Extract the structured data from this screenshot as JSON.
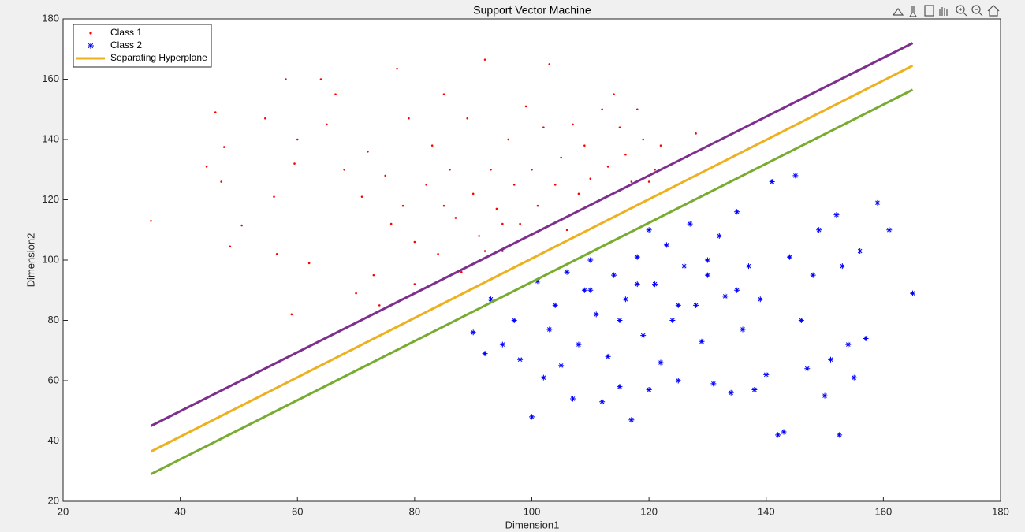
{
  "chart_data": {
    "type": "scatter",
    "title": "Support Vector Machine",
    "x_label": "Dimension1",
    "y_label": "Dimension2",
    "xlim": [
      20,
      180
    ],
    "ylim": [
      20,
      180
    ],
    "xticks": [
      20,
      40,
      60,
      80,
      100,
      120,
      140,
      160,
      180
    ],
    "yticks": [
      20,
      40,
      60,
      80,
      100,
      120,
      140,
      160,
      180
    ],
    "legend": "northwest",
    "series": [
      {
        "name": "Class 1",
        "type": "scatter",
        "marker": "dot",
        "color": "#ff0000",
        "x": [
          35,
          44.5,
          46,
          47,
          47.5,
          48.5,
          50.5,
          54.5,
          56,
          56.5,
          58,
          59,
          59.5,
          60,
          62,
          64,
          65,
          66.5,
          68,
          70,
          71,
          72,
          74,
          75,
          76,
          77,
          78,
          79,
          80,
          82,
          83,
          84,
          85,
          86,
          87,
          88,
          89,
          90,
          91,
          92,
          93,
          94,
          95,
          96,
          97,
          98,
          99,
          100,
          101,
          102,
          103,
          104,
          105,
          106,
          107,
          108,
          109,
          110,
          112,
          113,
          114,
          115,
          116,
          117,
          118,
          119,
          120,
          121,
          122,
          128,
          80,
          73,
          85,
          95,
          92
        ],
        "values": [
          113,
          131,
          149,
          126,
          137.5,
          104.5,
          111.5,
          147,
          121,
          102,
          160,
          82,
          132,
          140,
          99,
          160,
          145,
          155,
          130,
          89,
          121,
          136,
          85,
          128,
          112,
          163.5,
          118,
          147,
          106,
          125,
          138,
          102,
          155,
          130,
          114,
          96,
          147,
          122,
          108,
          166.5,
          130,
          117,
          103,
          140,
          125,
          112,
          151,
          130,
          118,
          144,
          165,
          125,
          134,
          110,
          145,
          122,
          138,
          127,
          150,
          131,
          155,
          144,
          135,
          126,
          150,
          140,
          126,
          130,
          138,
          142,
          92,
          95,
          118,
          112,
          103
        ]
      },
      {
        "name": "Class 2",
        "type": "scatter",
        "marker": "asterisk",
        "color": "#0000ff",
        "x": [
          90,
          92,
          93,
          95,
          97,
          98,
          100,
          101,
          102,
          103,
          104,
          105,
          106,
          107,
          108,
          109,
          110,
          111,
          112,
          113,
          114,
          115,
          116,
          117,
          118,
          119,
          120,
          121,
          122,
          123,
          124,
          125,
          126,
          127,
          128,
          129,
          130,
          131,
          132,
          133,
          134,
          135,
          136,
          137,
          138,
          139,
          140,
          141,
          142,
          143,
          144,
          145,
          146,
          147,
          148,
          149,
          150,
          151,
          152,
          152.5,
          153,
          154,
          155,
          156,
          157,
          159,
          161,
          165,
          110,
          118,
          125,
          130,
          115,
          120,
          135
        ],
        "values": [
          76,
          69,
          87,
          72,
          80,
          67,
          48,
          93,
          61,
          77,
          85,
          65,
          96,
          54,
          72,
          90,
          100,
          82,
          53,
          68,
          95,
          58,
          87,
          47,
          101,
          75,
          57,
          92,
          66,
          105,
          80,
          60,
          98,
          112,
          85,
          73,
          95,
          59,
          108,
          88,
          56,
          116,
          77,
          98,
          57,
          87,
          62,
          126,
          42,
          43,
          101,
          128,
          80,
          64,
          95,
          110,
          55,
          67,
          115,
          42,
          98,
          72,
          61,
          103,
          74,
          119,
          110,
          89,
          90,
          92,
          85,
          100,
          80,
          110,
          90
        ]
      },
      {
        "name": "Separating Hyperplane",
        "type": "line",
        "color": "#edb120",
        "x": [
          35,
          165
        ],
        "values": [
          36.5,
          164.5
        ]
      },
      {
        "type": "line",
        "color": "#7e2f8e",
        "x": [
          35,
          165
        ],
        "values": [
          45,
          172
        ]
      },
      {
        "type": "line",
        "color": "#77ac30",
        "x": [
          35,
          165
        ],
        "values": [
          29,
          156.5
        ]
      }
    ]
  }
}
